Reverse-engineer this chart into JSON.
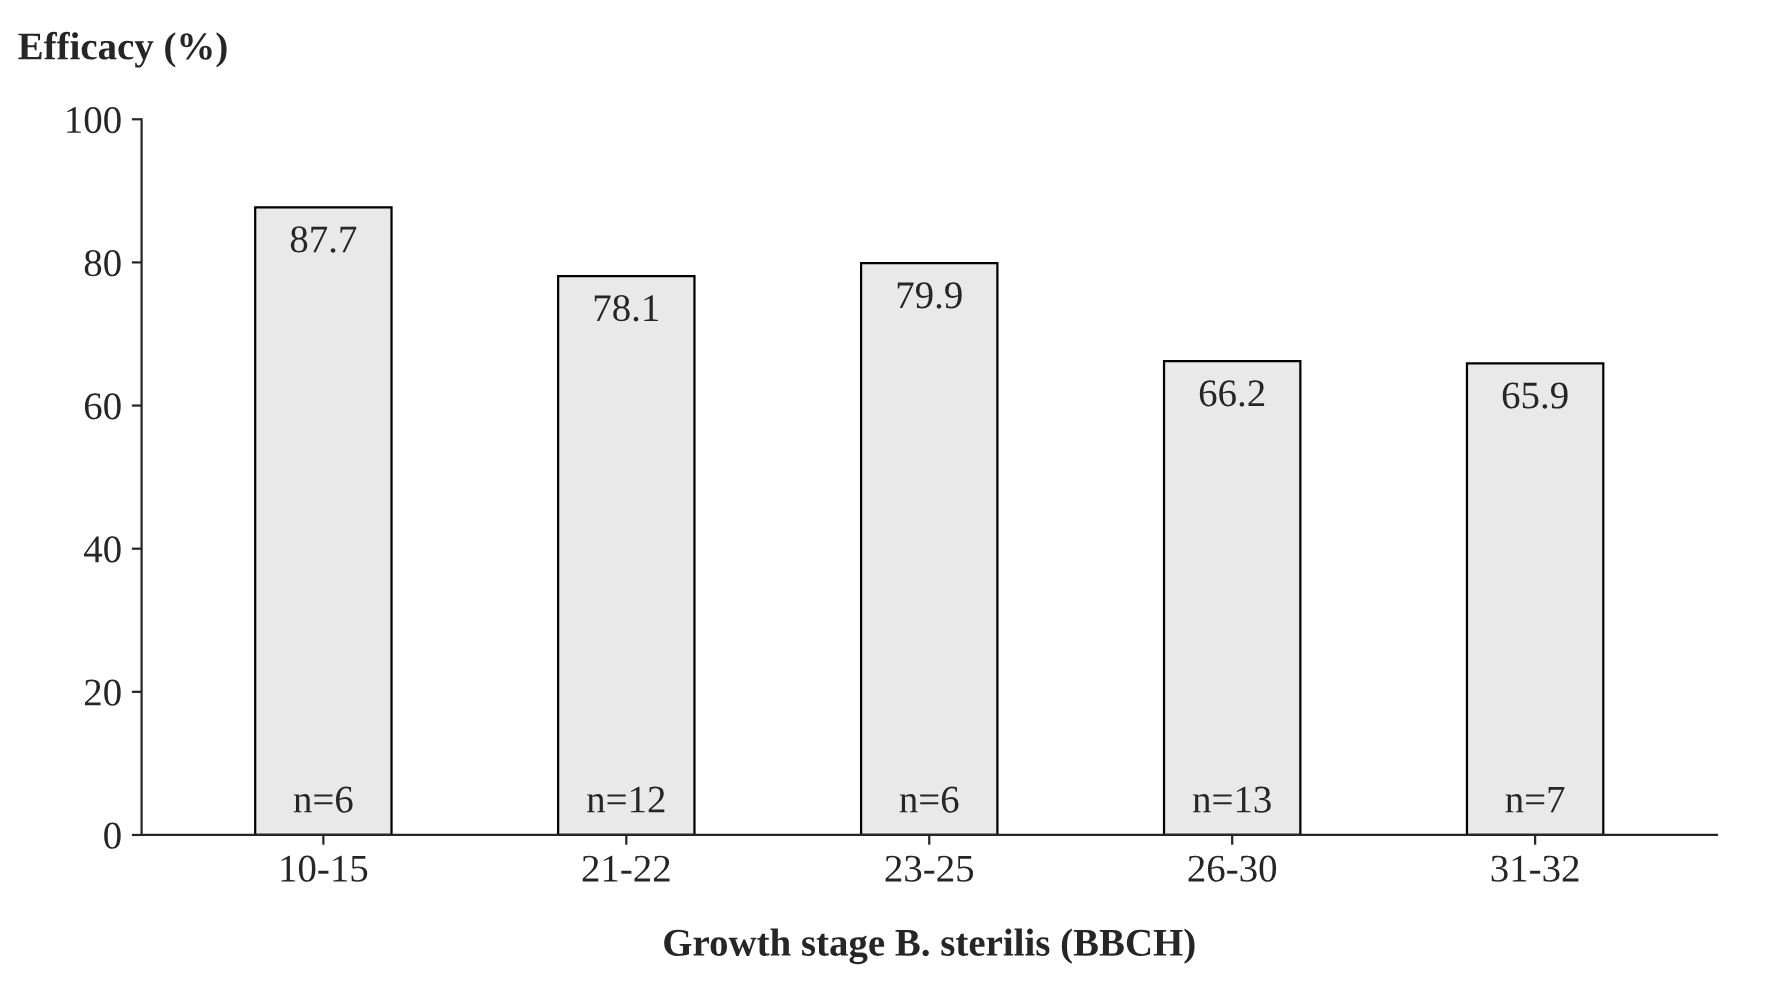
{
  "chart_data": {
    "type": "bar",
    "ylabel": "Efficacy (%)",
    "xlabel": "Growth stage B. sterilis (BBCH)",
    "categories": [
      "10-15",
      "21-22",
      "23-25",
      "26-30",
      "31-32"
    ],
    "values": [
      87.7,
      78.1,
      79.9,
      66.2,
      65.9
    ],
    "color": "#e9e9e9",
    "data_labels": true,
    "ylim": [
      0,
      100
    ],
    "yticks": [
      0,
      20,
      40,
      60,
      80,
      100
    ],
    "grid": false,
    "legend": false,
    "annotations": [
      "n=6",
      "n=12",
      "n=6",
      "n=13",
      "n=7"
    ]
  }
}
